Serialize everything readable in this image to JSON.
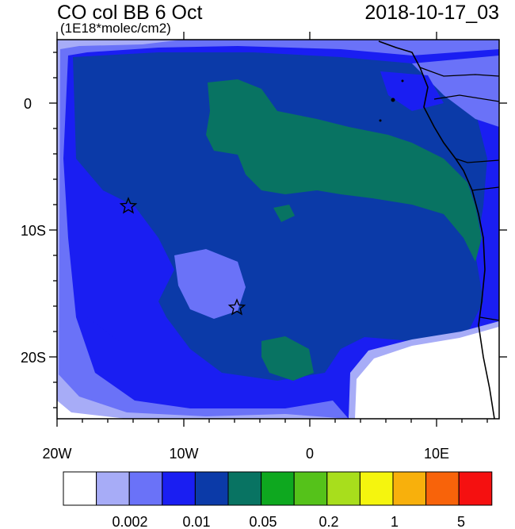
{
  "header": {
    "title": "CO col BB 6 Oct",
    "units": "(1E18*molec/cm2)",
    "datetime": "2018-10-17_03"
  },
  "axes": {
    "x_ticks": [
      "20W",
      "10W",
      "0",
      "10E"
    ],
    "y_ticks": [
      "0",
      "10S",
      "20S"
    ]
  },
  "colorbar": {
    "colors": [
      "#ffffff",
      "#a7acf7",
      "#6a72f8",
      "#1a1ef2",
      "#0b3aa8",
      "#087362",
      "#0ea81f",
      "#55c21a",
      "#a8de1c",
      "#f5f50e",
      "#f8b00c",
      "#f8630a",
      "#f51010"
    ],
    "labels": [
      "0.002",
      "0.01",
      "0.05",
      "0.2",
      "1",
      "5"
    ]
  },
  "map": {
    "region": "South Atlantic / SW Africa",
    "markers": [
      "star",
      "star"
    ]
  }
}
